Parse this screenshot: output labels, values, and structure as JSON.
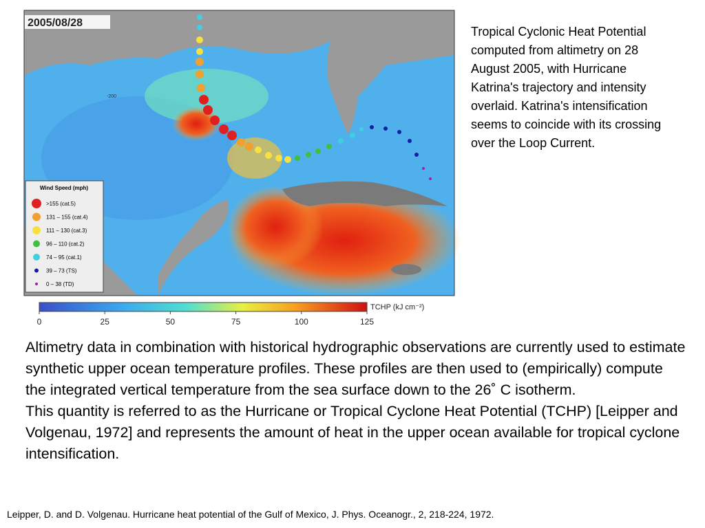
{
  "map": {
    "date": "2005/08/28",
    "contour_label": "-200",
    "legend": {
      "title": "Wind Speed (mph)",
      "entries": [
        ">155 (cat.5)",
        "131 – 155 (cat.4)",
        "111 – 130 (cat.3)",
        "96 – 110 (cat.2)",
        "74 – 95 (cat.1)",
        "39 – 73 (TS)",
        "0 – 38 (TD)"
      ]
    },
    "colorbar": {
      "label": "TCHP (kJ cm⁻²)",
      "ticks": [
        0,
        25,
        50,
        75,
        100,
        125
      ]
    }
  },
  "caption": "Tropical Cyclonic Heat Potential computed from altimetry on 28 August 2005, with Hurricane Katrina's trajectory and intensity overlaid. Katrina's intensification seems to coincide with its crossing over the Loop Current.",
  "body": [
    "Altimetry data in combination with historical hydrographic observations are currently used to estimate synthetic upper ocean temperature profiles. These profiles are then used to (empirically) compute the integrated vertical temperature from the sea surface down to the 26˚ C isotherm.",
    "This quantity is referred to as the Hurricane or Tropical Cyclone Heat Potential (TCHP) [Leipper and Volgenau, 1972] and represents the amount of heat in the upper ocean available for tropical cyclone intensification."
  ],
  "reference": "Leipper, D. and D. Volgenau. Hurricane heat potential of the Gulf of Mexico, J. Phys. Oceanogr., 2, 218-224, 1972."
}
